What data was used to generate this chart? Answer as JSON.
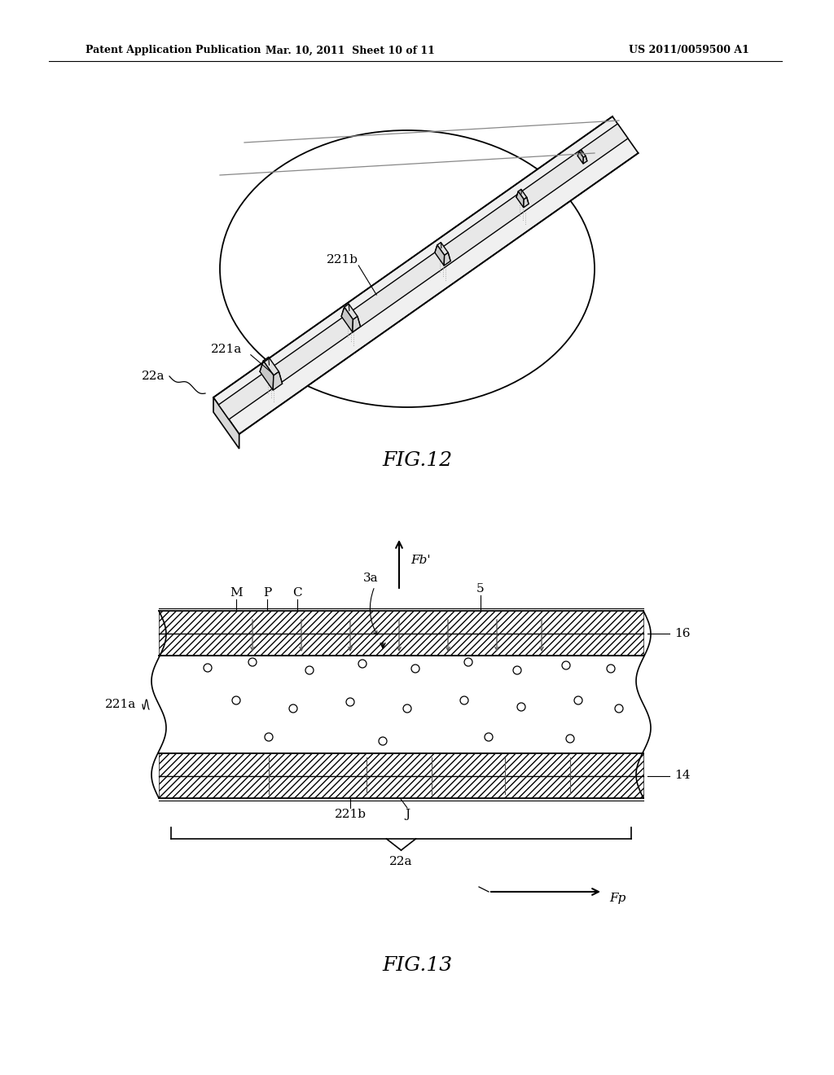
{
  "header_left": "Patent Application Publication",
  "header_mid": "Mar. 10, 2011  Sheet 10 of 11",
  "header_right": "US 2011/0059500 A1",
  "fig12_label": "FIG.12",
  "fig13_label": "FIG.13",
  "bg_color": "#ffffff",
  "line_color": "#000000",
  "label_22a_fig12": "22a",
  "label_221a": "221a",
  "label_221b": "221b",
  "label_Fb": "Fb'",
  "label_3a": "3a",
  "label_M": "M",
  "label_P": "P",
  "label_C": "C",
  "label_5": "5",
  "label_16": "16",
  "label_14": "14",
  "label_221a_fig13": "221a",
  "label_221b_fig13": "221b",
  "label_J": "J",
  "label_22a_fig13": "22a",
  "label_Fp": "Fp"
}
